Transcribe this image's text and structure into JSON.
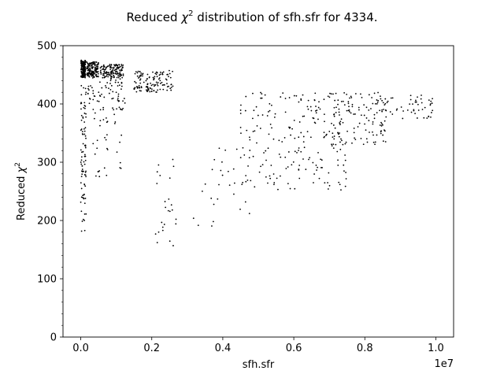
{
  "chart_data": {
    "type": "scatter",
    "title_prefix": "Reduced ",
    "title_symbol": "χ",
    "title_power": "2",
    "title_suffix": " distribution of sfh.sfr for 4334.",
    "xlabel": "sfh.sfr",
    "ylabel_prefix": "Reduced ",
    "ylabel_symbol": "χ",
    "ylabel_power": "2",
    "x_offset_label": "1e7",
    "x_scale": 10000000,
    "xlim": [
      -0.05,
      1.05
    ],
    "ylim": [
      0,
      500
    ],
    "xticks": [
      0.0,
      0.2,
      0.4,
      0.6,
      0.8,
      1.0
    ],
    "xtick_labels": [
      "0.0",
      "0.2",
      "0.4",
      "0.6",
      "0.8",
      "1.0"
    ],
    "yticks": [
      0,
      100,
      200,
      300,
      400,
      500
    ],
    "ytick_labels": [
      "0",
      "100",
      "200",
      "300",
      "400",
      "500"
    ],
    "marker_color": "#000000",
    "grid": false,
    "legend": "none",
    "point_clusters": [
      {
        "x": [
          0.005,
          0.14
        ],
        "y": [
          445,
          475
        ],
        "n": 160
      },
      {
        "x": [
          0.17,
          0.5
        ],
        "y": [
          445,
          472
        ],
        "n": 140
      },
      {
        "x": [
          0.55,
          1.2
        ],
        "y": [
          445,
          468
        ],
        "n": 140
      },
      {
        "x": [
          1.5,
          2.6
        ],
        "y": [
          420,
          458
        ],
        "n": 130
      },
      {
        "x": [
          0.0,
          0.15
        ],
        "y": [
          180,
          440
        ],
        "n": 90
      },
      {
        "x": [
          0.2,
          1.3
        ],
        "y": [
          390,
          445
        ],
        "n": 70
      },
      {
        "x": [
          0.3,
          1.2
        ],
        "y": [
          270,
          400
        ],
        "n": 35
      },
      {
        "x": [
          2.1,
          2.7
        ],
        "y": [
          150,
          305
        ],
        "n": 25
      },
      {
        "x": [
          3.0,
          4.8
        ],
        "y": [
          190,
          340
        ],
        "n": 30
      },
      {
        "x": [
          4.5,
          7.5
        ],
        "y": [
          250,
          420
        ],
        "n": 200
      },
      {
        "x": [
          7.0,
          8.6
        ],
        "y": [
          330,
          420
        ],
        "n": 110
      },
      {
        "x": [
          8.3,
          10.0
        ],
        "y": [
          375,
          415
        ],
        "n": 60
      }
    ]
  }
}
